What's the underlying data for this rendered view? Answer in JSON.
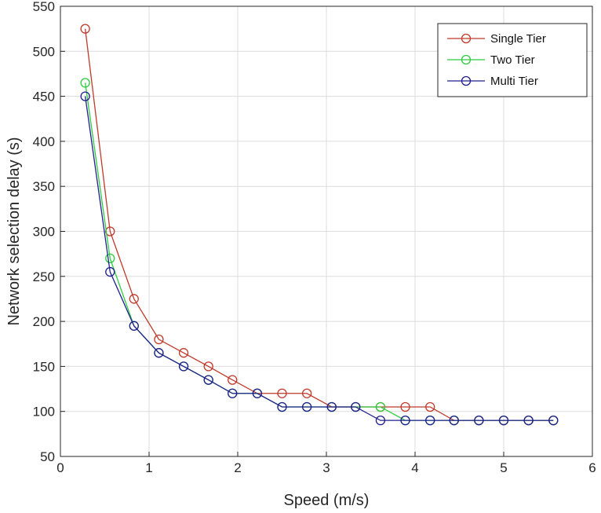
{
  "chart_data": {
    "type": "line",
    "title": "",
    "xlabel": "Speed (m/s)",
    "ylabel": "Network selection delay (s)",
    "xlim": [
      0,
      6
    ],
    "ylim": [
      50,
      550
    ],
    "xticks": [
      0,
      1,
      2,
      3,
      4,
      5,
      6
    ],
    "yticks": [
      50,
      100,
      150,
      200,
      250,
      300,
      350,
      400,
      450,
      500,
      550
    ],
    "grid": true,
    "legend_position": "top-right",
    "series": [
      {
        "name": "Single Tier",
        "color": "#c0392b",
        "marker": "circle",
        "x": [
          0.28,
          0.56,
          0.83,
          1.11,
          1.39,
          1.67,
          1.94,
          2.22,
          2.5,
          2.78,
          3.06,
          3.33,
          3.61,
          3.89,
          4.17,
          4.44,
          4.72,
          5.0,
          5.28,
          5.56
        ],
        "y": [
          525,
          300,
          225,
          180,
          165,
          150,
          135,
          120,
          120,
          120,
          105,
          105,
          105,
          105,
          105,
          90,
          90,
          90,
          90,
          90
        ]
      },
      {
        "name": "Two Tier",
        "color": "#2ecc40",
        "marker": "circle",
        "x": [
          0.28,
          0.56,
          0.83,
          1.11,
          1.39,
          1.67,
          1.94,
          2.22,
          2.5,
          2.78,
          3.06,
          3.33,
          3.61,
          3.89,
          4.17,
          4.44,
          4.72,
          5.0,
          5.28,
          5.56
        ],
        "y": [
          465,
          270,
          195,
          165,
          150,
          135,
          120,
          120,
          105,
          105,
          105,
          105,
          105,
          90,
          90,
          90,
          90,
          90,
          90,
          90
        ]
      },
      {
        "name": "Multi Tier",
        "color": "#1f1f8f",
        "marker": "circle",
        "x": [
          0.28,
          0.56,
          0.83,
          1.11,
          1.39,
          1.67,
          1.94,
          2.22,
          2.5,
          2.78,
          3.06,
          3.33,
          3.61,
          3.89,
          4.17,
          4.44,
          4.72,
          5.0,
          5.28,
          5.56
        ],
        "y": [
          450,
          255,
          195,
          165,
          150,
          135,
          120,
          120,
          105,
          105,
          105,
          105,
          90,
          90,
          90,
          90,
          90,
          90,
          90,
          90
        ]
      }
    ]
  }
}
